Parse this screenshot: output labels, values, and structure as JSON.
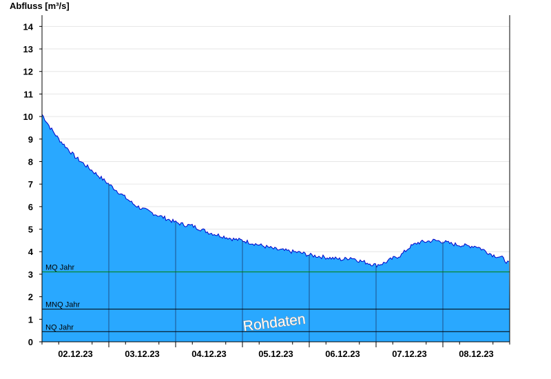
{
  "chart_data": {
    "type": "area",
    "ylabel": "Abfluss [m³/s]",
    "ylim": [
      0,
      14.5
    ],
    "yticks": [
      0,
      1,
      2,
      3,
      4,
      5,
      6,
      7,
      8,
      9,
      10,
      11,
      12,
      13,
      14
    ],
    "xlim": [
      "2023-12-01T12:00",
      "2023-12-08T12:00"
    ],
    "x_tick_labels": [
      "02.12.23",
      "03.12.23",
      "04.12.23",
      "05.12.23",
      "06.12.23",
      "07.12.23",
      "08.12.23"
    ],
    "grid": true,
    "area_color": "#29a8ff",
    "line_color": "#0000c8",
    "series": [
      {
        "name": "",
        "points": [
          [
            "2023-12-01T12:00",
            10.1
          ],
          [
            "2023-12-01T15:00",
            9.5
          ],
          [
            "2023-12-01T18:00",
            9.0
          ],
          [
            "2023-12-01T21:00",
            8.6
          ],
          [
            "2023-12-02T00:00",
            8.2
          ],
          [
            "2023-12-02T03:00",
            7.9
          ],
          [
            "2023-12-02T06:00",
            7.6
          ],
          [
            "2023-12-02T09:00",
            7.3
          ],
          [
            "2023-12-02T12:00",
            7.0
          ],
          [
            "2023-12-02T15:00",
            6.7
          ],
          [
            "2023-12-02T18:00",
            6.4
          ],
          [
            "2023-12-02T21:00",
            6.1
          ],
          [
            "2023-12-03T00:00",
            5.9
          ],
          [
            "2023-12-03T03:00",
            5.75
          ],
          [
            "2023-12-03T06:00",
            5.6
          ],
          [
            "2023-12-03T09:00",
            5.45
          ],
          [
            "2023-12-03T12:00",
            5.3
          ],
          [
            "2023-12-03T15:00",
            5.2
          ],
          [
            "2023-12-03T18:00",
            5.15
          ],
          [
            "2023-12-03T21:00",
            5.0
          ],
          [
            "2023-12-04T00:00",
            4.85
          ],
          [
            "2023-12-04T03:00",
            4.75
          ],
          [
            "2023-12-04T06:00",
            4.65
          ],
          [
            "2023-12-04T09:00",
            4.55
          ],
          [
            "2023-12-04T12:00",
            4.5
          ],
          [
            "2023-12-04T15:00",
            4.4
          ],
          [
            "2023-12-04T18:00",
            4.3
          ],
          [
            "2023-12-04T21:00",
            4.2
          ],
          [
            "2023-12-05T00:00",
            4.1
          ],
          [
            "2023-12-05T03:00",
            4.05
          ],
          [
            "2023-12-05T06:00",
            4.0
          ],
          [
            "2023-12-05T09:00",
            3.95
          ],
          [
            "2023-12-05T12:00",
            3.85
          ],
          [
            "2023-12-05T15:00",
            3.8
          ],
          [
            "2023-12-05T18:00",
            3.75
          ],
          [
            "2023-12-05T21:00",
            3.7
          ],
          [
            "2023-12-06T00:00",
            3.65
          ],
          [
            "2023-12-06T03:00",
            3.75
          ],
          [
            "2023-12-06T06:00",
            3.6
          ],
          [
            "2023-12-06T09:00",
            3.5
          ],
          [
            "2023-12-06T12:00",
            3.4
          ],
          [
            "2023-12-06T15:00",
            3.5
          ],
          [
            "2023-12-06T18:00",
            3.7
          ],
          [
            "2023-12-06T21:00",
            3.85
          ],
          [
            "2023-12-07T00:00",
            4.2
          ],
          [
            "2023-12-07T03:00",
            4.4
          ],
          [
            "2023-12-07T06:00",
            4.45
          ],
          [
            "2023-12-07T09:00",
            4.5
          ],
          [
            "2023-12-07T12:00",
            4.45
          ],
          [
            "2023-12-07T15:00",
            4.35
          ],
          [
            "2023-12-07T18:00",
            4.3
          ],
          [
            "2023-12-07T21:00",
            4.25
          ],
          [
            "2023-12-08T00:00",
            4.25
          ],
          [
            "2023-12-08T03:00",
            4.05
          ],
          [
            "2023-12-08T06:00",
            3.85
          ],
          [
            "2023-12-08T09:00",
            3.75
          ],
          [
            "2023-12-08T12:00",
            3.45
          ]
        ]
      }
    ],
    "reference_lines": [
      {
        "label": "MQ Jahr",
        "value": 3.1,
        "color": "#008000"
      },
      {
        "label": "MNQ Jahr",
        "value": 1.45,
        "color": "#000000"
      },
      {
        "label": "NQ Jahr",
        "value": 0.45,
        "color": "#000000"
      }
    ],
    "annotation": "Rohdaten"
  }
}
